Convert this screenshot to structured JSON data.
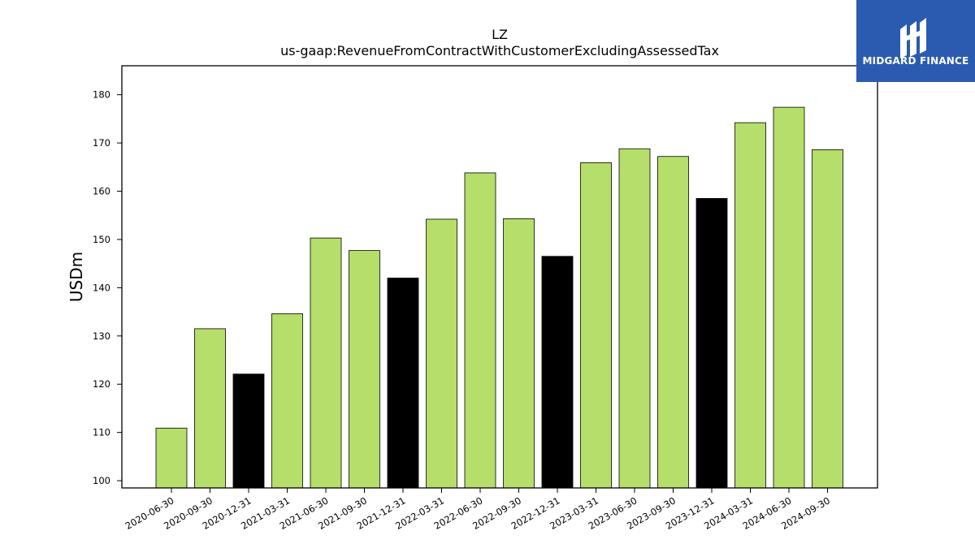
{
  "chart_data": {
    "type": "bar",
    "title": "LZ",
    "subtitle": "us-gaap:RevenueFromContractWithCustomerExcludingAssessedTax",
    "ylabel": "USDm",
    "xlabel": "",
    "ylim": [
      98.5,
      186
    ],
    "yticks": [
      100,
      110,
      120,
      130,
      140,
      150,
      160,
      170,
      180
    ],
    "grid": false,
    "categories": [
      "2020-06-30",
      "2020-09-30",
      "2020-12-31",
      "2021-03-31",
      "2021-06-30",
      "2021-09-30",
      "2021-12-31",
      "2022-03-31",
      "2022-06-30",
      "2022-09-30",
      "2022-12-31",
      "2023-03-31",
      "2023-06-30",
      "2023-09-30",
      "2023-12-31",
      "2024-03-31",
      "2024-06-30",
      "2024-09-30"
    ],
    "values": [
      110.9,
      131.5,
      122.1,
      134.6,
      150.3,
      147.7,
      142.0,
      154.2,
      163.8,
      154.3,
      146.5,
      165.9,
      168.8,
      167.2,
      158.5,
      174.2,
      177.4,
      168.6
    ],
    "colors": {
      "default": "#b5de6a",
      "year_end": "#000000",
      "edge": "#000000"
    }
  },
  "logo": {
    "text": "MIDGARD FINANCE",
    "background": "#2b5bb0"
  }
}
